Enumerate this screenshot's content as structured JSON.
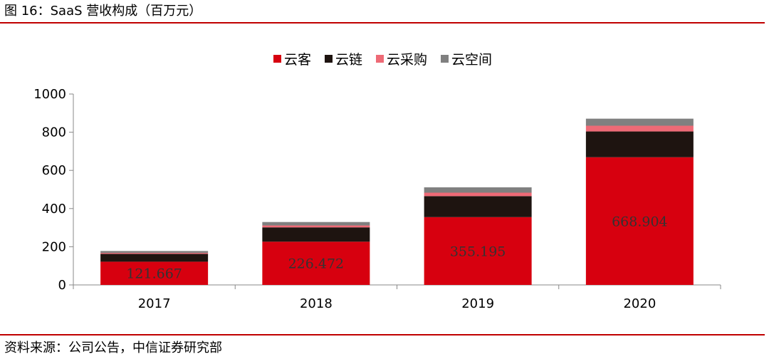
{
  "title": "图 16：SaaS 营收构成（百万元）",
  "source": "资料来源：公司公告，中信证券研究部",
  "colors": {
    "rule": "#c00000"
  },
  "chart_data": {
    "type": "bar",
    "stacked": true,
    "categories": [
      "2017",
      "2018",
      "2019",
      "2020"
    ],
    "series": [
      {
        "name": "云客",
        "color": "#d7000f",
        "values": [
          121.667,
          226.472,
          355.195,
          668.904
        ],
        "labels": [
          "121.667",
          "226.472",
          "355.195",
          "668.904"
        ]
      },
      {
        "name": "云链",
        "color": "#1e1410",
        "values": [
          41,
          75,
          110,
          135
        ]
      },
      {
        "name": "云采购",
        "color": "#ee6a76",
        "values": [
          5,
          10,
          18,
          30
        ]
      },
      {
        "name": "云空间",
        "color": "#808080",
        "values": [
          10,
          18,
          28,
          37
        ]
      }
    ],
    "yticks": [
      "0",
      "200",
      "400",
      "600",
      "800",
      "1000"
    ],
    "ylim": [
      0,
      1000
    ],
    "legend_position": "top",
    "grid": false
  }
}
